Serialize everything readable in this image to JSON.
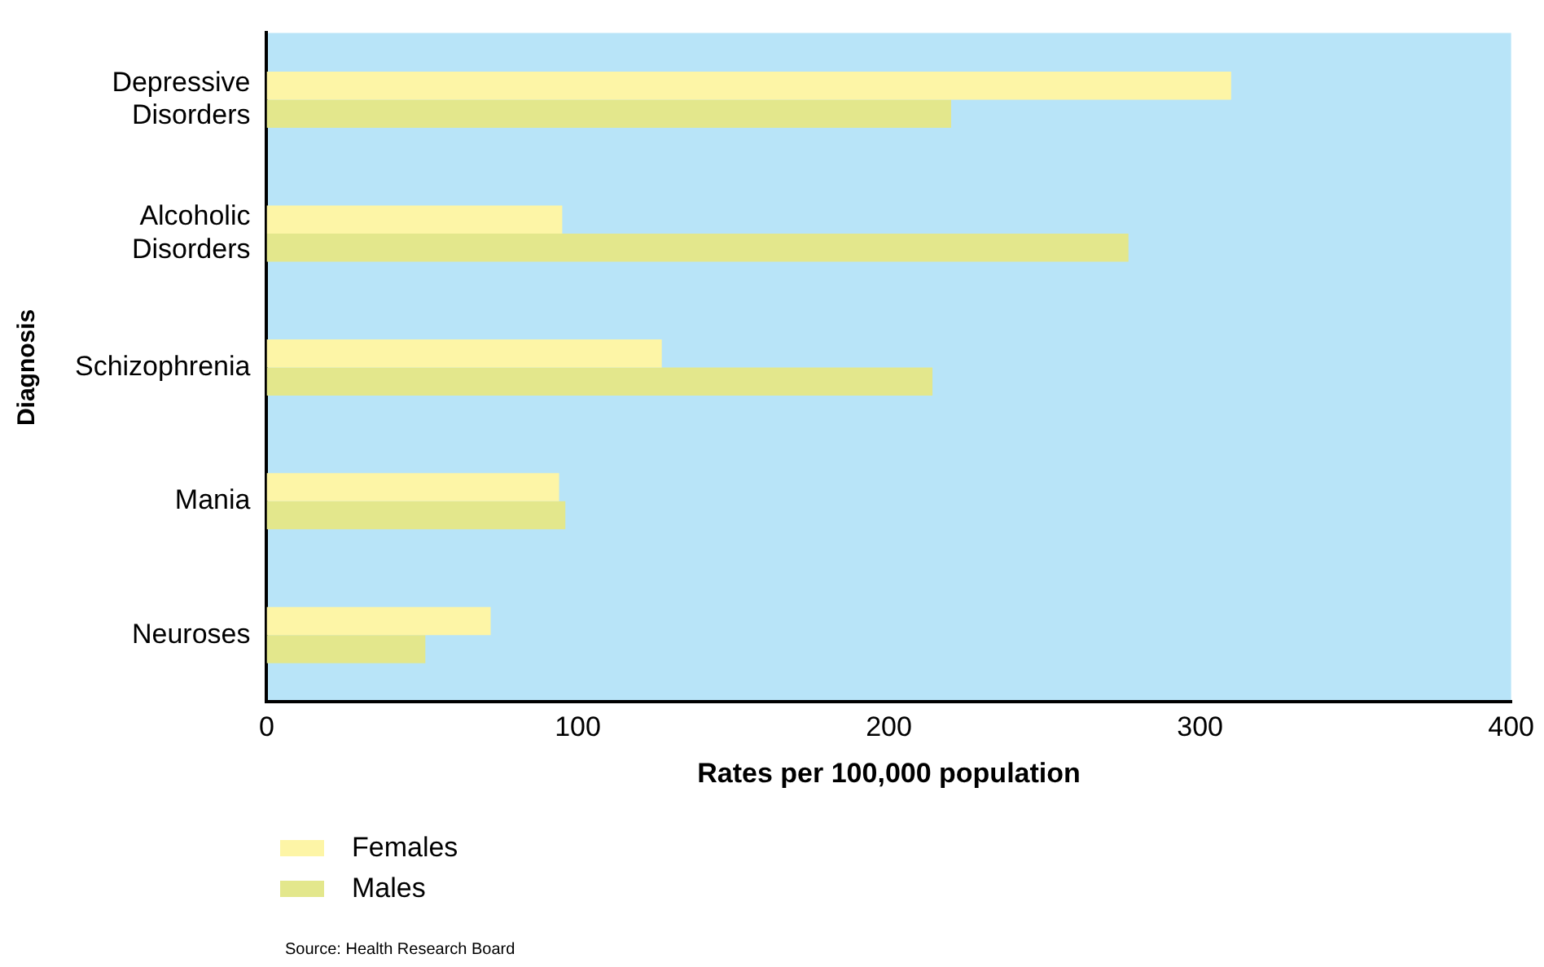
{
  "chart_data": {
    "type": "bar",
    "orientation": "horizontal",
    "xlabel": "Rates per 100,000 population",
    "ylabel": "Diagnosis",
    "categories": [
      "Depressive Disorders",
      "Alcoholic Disorders",
      "Schizophrenia",
      "Mania",
      "Neuroses"
    ],
    "series": [
      {
        "name": "Females",
        "color": "#fdf5a6",
        "values": [
          310,
          95,
          127,
          94,
          72
        ]
      },
      {
        "name": "Males",
        "color": "#e3e78c",
        "values": [
          220,
          277,
          214,
          96,
          51
        ]
      }
    ],
    "xlim": [
      0,
      400
    ],
    "xticks": [
      0,
      100,
      200,
      300,
      400
    ],
    "grid": false,
    "legend": "bottom left",
    "annotations": [
      "Source: Health Research Board"
    ]
  }
}
